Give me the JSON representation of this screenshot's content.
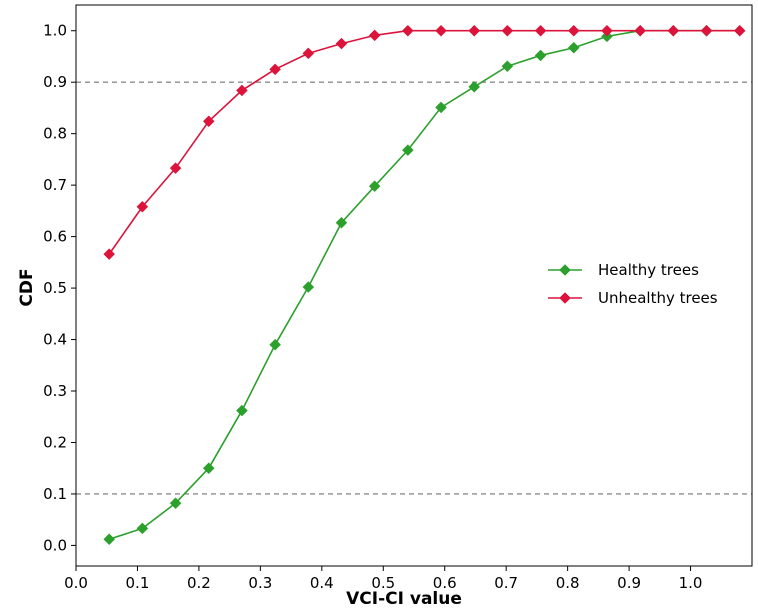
{
  "chart_data": {
    "type": "line",
    "title": "",
    "xlabel": "VCI-CI value",
    "ylabel": "CDF",
    "xlim": [
      0.0,
      1.1
    ],
    "ylim": [
      -0.04,
      1.05
    ],
    "x_ticks": [
      "0.0",
      "0.1",
      "0.2",
      "0.3",
      "0.4",
      "0.5",
      "0.6",
      "0.7",
      "0.8",
      "0.9",
      "1.0"
    ],
    "y_ticks": [
      "0.0",
      "0.1",
      "0.2",
      "0.3",
      "0.4",
      "0.5",
      "0.6",
      "0.7",
      "0.8",
      "0.9",
      "1.0"
    ],
    "reference_lines": [
      0.1,
      0.9
    ],
    "grid": false,
    "legend_position": "center-right",
    "series": [
      {
        "name": "Healthy trees",
        "color": "#2ca02c",
        "marker": "diamond",
        "x": [
          0.054,
          0.108,
          0.162,
          0.216,
          0.27,
          0.324,
          0.378,
          0.432,
          0.486,
          0.54,
          0.594,
          0.648,
          0.702,
          0.756,
          0.81,
          0.864,
          0.918,
          0.972,
          1.026,
          1.08
        ],
        "y": [
          0.012,
          0.033,
          0.082,
          0.15,
          0.262,
          0.39,
          0.502,
          0.627,
          0.698,
          0.768,
          0.851,
          0.891,
          0.931,
          0.952,
          0.967,
          0.989,
          1.0,
          1.0,
          1.0,
          1.0
        ]
      },
      {
        "name": "Unhealthy trees",
        "color": "#dc143c",
        "marker": "diamond",
        "x": [
          0.054,
          0.108,
          0.162,
          0.216,
          0.27,
          0.324,
          0.378,
          0.432,
          0.486,
          0.54,
          0.594,
          0.648,
          0.702,
          0.756,
          0.81,
          0.864,
          0.918,
          0.972,
          1.026,
          1.08
        ],
        "y": [
          0.566,
          0.658,
          0.733,
          0.824,
          0.884,
          0.925,
          0.956,
          0.975,
          0.991,
          1.0,
          1.0,
          1.0,
          1.0,
          1.0,
          1.0,
          1.0,
          1.0,
          1.0,
          1.0,
          1.0
        ]
      }
    ]
  }
}
